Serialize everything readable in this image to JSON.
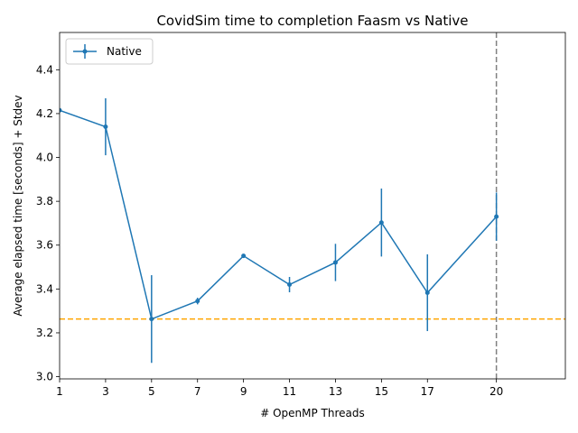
{
  "chart_data": {
    "type": "line",
    "title": "CovidSim time to completion Faasm vs Native",
    "xlabel": "# OpenMP Threads",
    "ylabel": "Average elapsed time [seconds] + Stdev",
    "xlim": [
      1,
      23
    ],
    "ylim": [
      2.99,
      4.57
    ],
    "x_ticks": [
      "1",
      "3",
      "5",
      "7",
      "9",
      "11",
      "13",
      "15",
      "17",
      "20"
    ],
    "x_tick_values": [
      1,
      3,
      5,
      7,
      9,
      11,
      13,
      15,
      17,
      20
    ],
    "y_ticks": [
      "3.0",
      "3.2",
      "3.4",
      "3.6",
      "3.8",
      "4.0",
      "4.2",
      "4.4"
    ],
    "y_tick_values": [
      3.0,
      3.2,
      3.4,
      3.6,
      3.8,
      4.0,
      4.2,
      4.4
    ],
    "legend": "upper-left",
    "series": [
      {
        "name": "Native",
        "color": "#1f77b4",
        "x": [
          1,
          3,
          5,
          7,
          9,
          11,
          13,
          15,
          17,
          20
        ],
        "y": [
          4.215,
          4.14,
          3.263,
          3.345,
          3.551,
          3.42,
          3.521,
          3.703,
          3.383,
          3.73
        ],
        "stdev": [
          0.0,
          0.13,
          0.2,
          0.015,
          0.005,
          0.035,
          0.085,
          0.155,
          0.175,
          0.11
        ]
      }
    ],
    "hline": {
      "y": 3.263,
      "color": "#ffa500",
      "style": "dashed"
    },
    "vline": {
      "x": 20,
      "color": "#808080",
      "style": "dashed"
    },
    "grid": false
  }
}
